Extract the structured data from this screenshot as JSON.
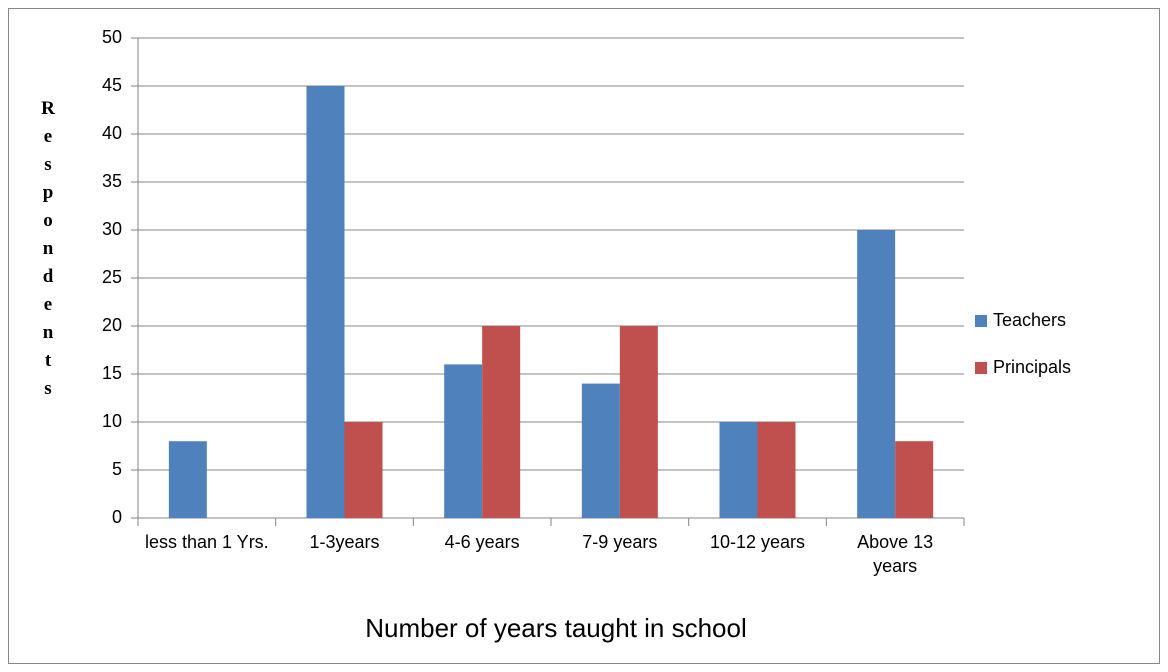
{
  "chart_data": {
    "type": "bar",
    "x_label": "Number of years taught in school",
    "y_label": "Respondents",
    "categories": [
      "less than 1 Yrs.",
      "1-3years",
      "4-6 years",
      "7-9 years",
      "10-12 years",
      "Above 13 years"
    ],
    "series": [
      {
        "name": "Teachers",
        "color": "#4f81bd",
        "values": [
          8,
          45,
          16,
          14,
          10,
          30
        ]
      },
      {
        "name": "Principals",
        "color": "#c0504d",
        "values": [
          0,
          10,
          20,
          20,
          10,
          8
        ]
      }
    ],
    "ylim": [
      0,
      50
    ],
    "yticks": [
      0,
      5,
      10,
      15,
      20,
      25,
      30,
      35,
      40,
      45,
      50
    ],
    "grid": true,
    "legend": "right"
  }
}
